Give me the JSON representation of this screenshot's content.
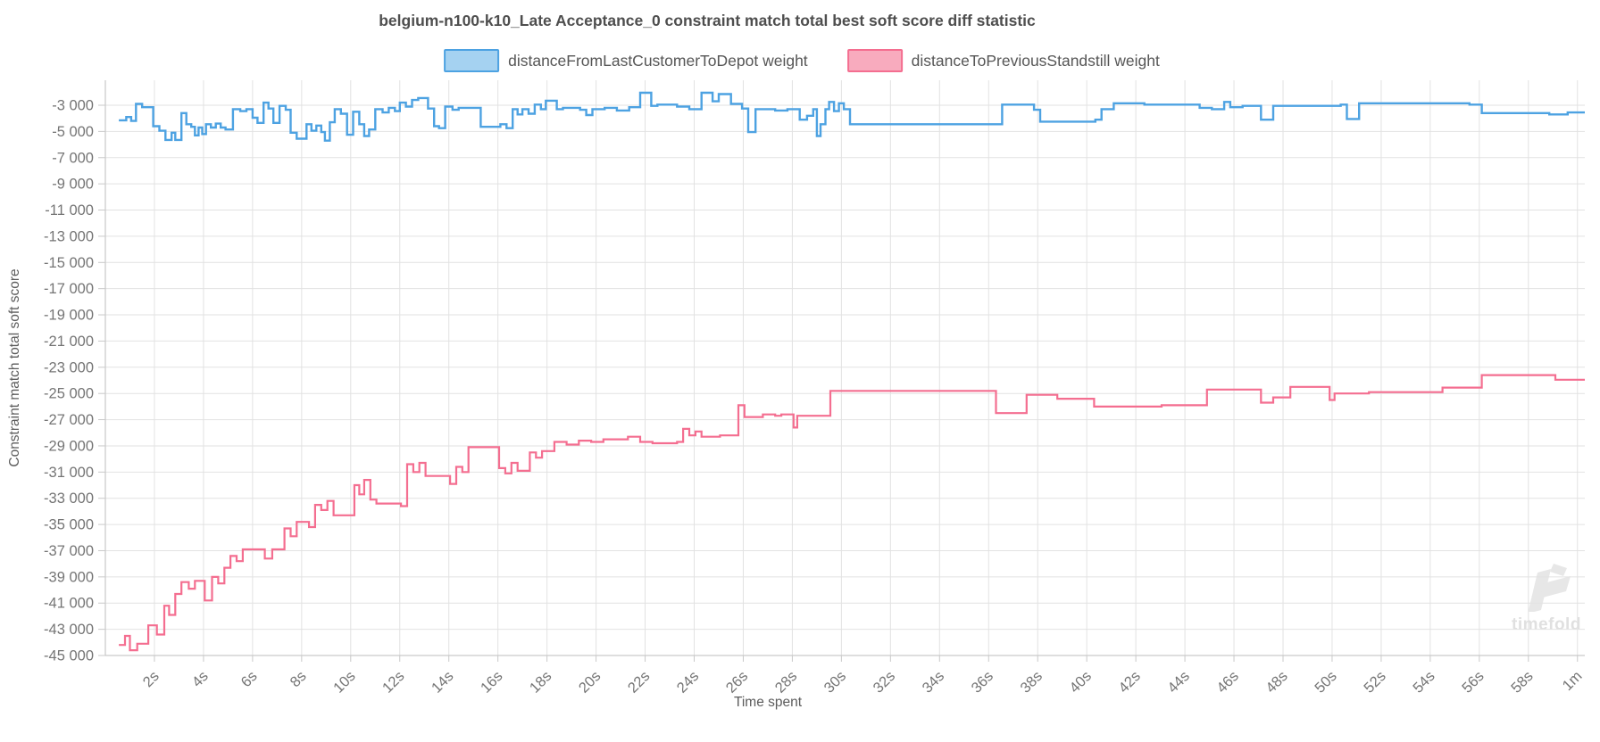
{
  "title": "belgium-n100-k10_Late Acceptance_0 constraint match total best soft score diff statistic",
  "watermark": {
    "text": "timefold",
    "logo_icon": "timefold-logo-icon"
  },
  "axes": {
    "y_title": "Constraint match total soft score",
    "x_title": "Time spent",
    "y_tick_values": [
      -3000,
      -5000,
      -7000,
      -9000,
      -11000,
      -13000,
      -15000,
      -17000,
      -19000,
      -21000,
      -23000,
      -25000,
      -27000,
      -29000,
      -31000,
      -33000,
      -35000,
      -37000,
      -39000,
      -41000,
      -43000,
      -45000
    ],
    "y_tick_labels": [
      "-3 000",
      "-5 000",
      "-7 000",
      "-9 000",
      "-11 000",
      "-13 000",
      "-15 000",
      "-17 000",
      "-19 000",
      "-21 000",
      "-23 000",
      "-25 000",
      "-27 000",
      "-29 000",
      "-31 000",
      "-33 000",
      "-35 000",
      "-37 000",
      "-39 000",
      "-41 000",
      "-43 000",
      "-45 000"
    ],
    "x_tick_values": [
      2,
      4,
      6,
      8,
      10,
      12,
      14,
      16,
      18,
      20,
      22,
      24,
      26,
      28,
      30,
      32,
      34,
      36,
      38,
      40,
      42,
      44,
      46,
      48,
      50,
      52,
      54,
      56,
      58,
      60
    ],
    "x_tick_labels": [
      "2s",
      "4s",
      "6s",
      "8s",
      "10s",
      "12s",
      "14s",
      "16s",
      "18s",
      "20s",
      "22s",
      "24s",
      "26s",
      "28s",
      "30s",
      "32s",
      "34s",
      "36s",
      "38s",
      "40s",
      "42s",
      "44s",
      "46s",
      "48s",
      "50s",
      "52s",
      "54s",
      "56s",
      "58s",
      "1m"
    ]
  },
  "chart_data": {
    "type": "line",
    "stepped": true,
    "grid": true,
    "legend_position": "top",
    "x_unit": "seconds",
    "x_range": [
      0,
      60.3
    ],
    "y_axis_range": [
      -45300,
      -1100
    ],
    "colors": {
      "grid": "#e2e2e2",
      "axis": "#c9c9c9",
      "tick_text": "#757575",
      "title_text": "#4e4e4e"
    },
    "series": [
      {
        "name": "distanceFromLastCustomerToDepot weight",
        "color": "#4da2e2",
        "fill": "#a5d2f1",
        "points": [
          [
            0.55,
            -4150
          ],
          [
            0.85,
            -3900
          ],
          [
            1.05,
            -4200
          ],
          [
            1.25,
            -2900
          ],
          [
            1.5,
            -3150
          ],
          [
            1.95,
            -4600
          ],
          [
            2.2,
            -4950
          ],
          [
            2.45,
            -5650
          ],
          [
            2.7,
            -5100
          ],
          [
            2.85,
            -5650
          ],
          [
            3.1,
            -3600
          ],
          [
            3.3,
            -4450
          ],
          [
            3.5,
            -4650
          ],
          [
            3.65,
            -5300
          ],
          [
            3.8,
            -4700
          ],
          [
            3.95,
            -5200
          ],
          [
            4.1,
            -4450
          ],
          [
            4.3,
            -4700
          ],
          [
            4.5,
            -4400
          ],
          [
            4.7,
            -4700
          ],
          [
            4.9,
            -4850
          ],
          [
            5.2,
            -3300
          ],
          [
            5.5,
            -3450
          ],
          [
            5.75,
            -3300
          ],
          [
            6.0,
            -3950
          ],
          [
            6.2,
            -4350
          ],
          [
            6.45,
            -2800
          ],
          [
            6.65,
            -3250
          ],
          [
            6.85,
            -4350
          ],
          [
            7.1,
            -3050
          ],
          [
            7.35,
            -3350
          ],
          [
            7.55,
            -5100
          ],
          [
            7.8,
            -5550
          ],
          [
            8.2,
            -4450
          ],
          [
            8.4,
            -4950
          ],
          [
            8.6,
            -4550
          ],
          [
            8.8,
            -5050
          ],
          [
            8.95,
            -5700
          ],
          [
            9.15,
            -4300
          ],
          [
            9.35,
            -3300
          ],
          [
            9.6,
            -3650
          ],
          [
            9.85,
            -5250
          ],
          [
            10.1,
            -3500
          ],
          [
            10.35,
            -4450
          ],
          [
            10.55,
            -5350
          ],
          [
            10.75,
            -4850
          ],
          [
            11.0,
            -3300
          ],
          [
            11.3,
            -3550
          ],
          [
            11.55,
            -3200
          ],
          [
            11.8,
            -3450
          ],
          [
            12.0,
            -2800
          ],
          [
            12.25,
            -3100
          ],
          [
            12.5,
            -2600
          ],
          [
            12.75,
            -2450
          ],
          [
            13.15,
            -3250
          ],
          [
            13.4,
            -4600
          ],
          [
            13.6,
            -4750
          ],
          [
            13.85,
            -3100
          ],
          [
            14.15,
            -3350
          ],
          [
            14.4,
            -3200
          ],
          [
            15.3,
            -4650
          ],
          [
            16.1,
            -4450
          ],
          [
            16.35,
            -4750
          ],
          [
            16.6,
            -3300
          ],
          [
            16.8,
            -3700
          ],
          [
            17.0,
            -3300
          ],
          [
            17.25,
            -3650
          ],
          [
            17.5,
            -2950
          ],
          [
            17.75,
            -3300
          ],
          [
            17.95,
            -2650
          ],
          [
            18.4,
            -3300
          ],
          [
            18.65,
            -3200
          ],
          [
            19.35,
            -3350
          ],
          [
            19.6,
            -3750
          ],
          [
            19.85,
            -3300
          ],
          [
            20.35,
            -3200
          ],
          [
            20.85,
            -3400
          ],
          [
            21.35,
            -3150
          ],
          [
            21.8,
            -2050
          ],
          [
            22.25,
            -3050
          ],
          [
            22.5,
            -2950
          ],
          [
            23.3,
            -3100
          ],
          [
            23.8,
            -3300
          ],
          [
            24.3,
            -2050
          ],
          [
            24.75,
            -2700
          ],
          [
            25.0,
            -2150
          ],
          [
            25.5,
            -2900
          ],
          [
            25.95,
            -3250
          ],
          [
            26.2,
            -5050
          ],
          [
            26.5,
            -3300
          ],
          [
            27.3,
            -3400
          ],
          [
            27.8,
            -3300
          ],
          [
            28.3,
            -4100
          ],
          [
            28.6,
            -3800
          ],
          [
            28.85,
            -3300
          ],
          [
            29.0,
            -5350
          ],
          [
            29.15,
            -4450
          ],
          [
            29.35,
            -3300
          ],
          [
            29.5,
            -2750
          ],
          [
            29.7,
            -3450
          ],
          [
            29.9,
            -2850
          ],
          [
            30.1,
            -3300
          ],
          [
            30.35,
            -4450
          ],
          [
            36.55,
            -2950
          ],
          [
            37.85,
            -3350
          ],
          [
            38.1,
            -4250
          ],
          [
            40.35,
            -4100
          ],
          [
            40.6,
            -3300
          ],
          [
            41.1,
            -2850
          ],
          [
            42.35,
            -2950
          ],
          [
            44.6,
            -3200
          ],
          [
            45.1,
            -3300
          ],
          [
            45.6,
            -2750
          ],
          [
            45.85,
            -3150
          ],
          [
            46.35,
            -3050
          ],
          [
            47.1,
            -4100
          ],
          [
            47.6,
            -3050
          ],
          [
            50.35,
            -2950
          ],
          [
            50.6,
            -4050
          ],
          [
            51.1,
            -2850
          ],
          [
            55.6,
            -2950
          ],
          [
            56.1,
            -3600
          ],
          [
            58.85,
            -3700
          ],
          [
            59.6,
            -3550
          ]
        ]
      },
      {
        "name": "distanceToPreviousStandstill weight",
        "color": "#f46e90",
        "fill": "#f8abbe",
        "points": [
          [
            0.55,
            -44200
          ],
          [
            0.8,
            -43500
          ],
          [
            1.0,
            -44600
          ],
          [
            1.3,
            -44100
          ],
          [
            1.75,
            -42700
          ],
          [
            2.1,
            -43400
          ],
          [
            2.4,
            -41200
          ],
          [
            2.6,
            -41900
          ],
          [
            2.85,
            -40300
          ],
          [
            3.1,
            -39400
          ],
          [
            3.4,
            -39900
          ],
          [
            3.65,
            -39300
          ],
          [
            4.05,
            -40800
          ],
          [
            4.35,
            -39000
          ],
          [
            4.6,
            -39500
          ],
          [
            4.85,
            -38300
          ],
          [
            5.1,
            -37400
          ],
          [
            5.35,
            -37800
          ],
          [
            5.6,
            -36900
          ],
          [
            6.5,
            -37600
          ],
          [
            6.8,
            -36900
          ],
          [
            7.3,
            -35300
          ],
          [
            7.55,
            -35900
          ],
          [
            7.8,
            -34800
          ],
          [
            8.3,
            -35200
          ],
          [
            8.55,
            -33500
          ],
          [
            8.8,
            -33900
          ],
          [
            9.05,
            -33200
          ],
          [
            9.3,
            -34300
          ],
          [
            10.15,
            -32000
          ],
          [
            10.35,
            -32700
          ],
          [
            10.55,
            -31600
          ],
          [
            10.8,
            -33100
          ],
          [
            11.05,
            -33400
          ],
          [
            12.05,
            -33600
          ],
          [
            12.3,
            -30400
          ],
          [
            12.55,
            -31000
          ],
          [
            12.8,
            -30300
          ],
          [
            13.05,
            -31300
          ],
          [
            14.05,
            -31900
          ],
          [
            14.3,
            -30600
          ],
          [
            14.55,
            -31000
          ],
          [
            14.8,
            -29100
          ],
          [
            16.05,
            -30700
          ],
          [
            16.3,
            -31100
          ],
          [
            16.55,
            -30300
          ],
          [
            16.8,
            -30900
          ],
          [
            17.3,
            -29500
          ],
          [
            17.55,
            -29900
          ],
          [
            17.8,
            -29400
          ],
          [
            18.3,
            -28700
          ],
          [
            18.8,
            -28900
          ],
          [
            19.3,
            -28600
          ],
          [
            19.8,
            -28700
          ],
          [
            20.3,
            -28500
          ],
          [
            21.3,
            -28300
          ],
          [
            21.8,
            -28700
          ],
          [
            22.3,
            -28800
          ],
          [
            23.3,
            -28700
          ],
          [
            23.55,
            -27700
          ],
          [
            23.8,
            -28200
          ],
          [
            24.05,
            -27900
          ],
          [
            24.3,
            -28300
          ],
          [
            25.05,
            -28200
          ],
          [
            25.8,
            -25900
          ],
          [
            26.05,
            -26800
          ],
          [
            26.8,
            -26600
          ],
          [
            27.3,
            -26700
          ],
          [
            27.55,
            -26600
          ],
          [
            28.05,
            -27600
          ],
          [
            28.2,
            -26700
          ],
          [
            29.55,
            -24800
          ],
          [
            36.3,
            -26500
          ],
          [
            37.55,
            -25100
          ],
          [
            38.8,
            -25400
          ],
          [
            40.3,
            -26000
          ],
          [
            43.05,
            -25900
          ],
          [
            44.9,
            -24700
          ],
          [
            47.1,
            -25700
          ],
          [
            47.6,
            -25300
          ],
          [
            48.3,
            -24500
          ],
          [
            49.9,
            -25500
          ],
          [
            50.1,
            -25000
          ],
          [
            51.5,
            -24900
          ],
          [
            54.5,
            -24550
          ],
          [
            56.1,
            -23600
          ],
          [
            59.1,
            -23950
          ]
        ]
      }
    ]
  }
}
